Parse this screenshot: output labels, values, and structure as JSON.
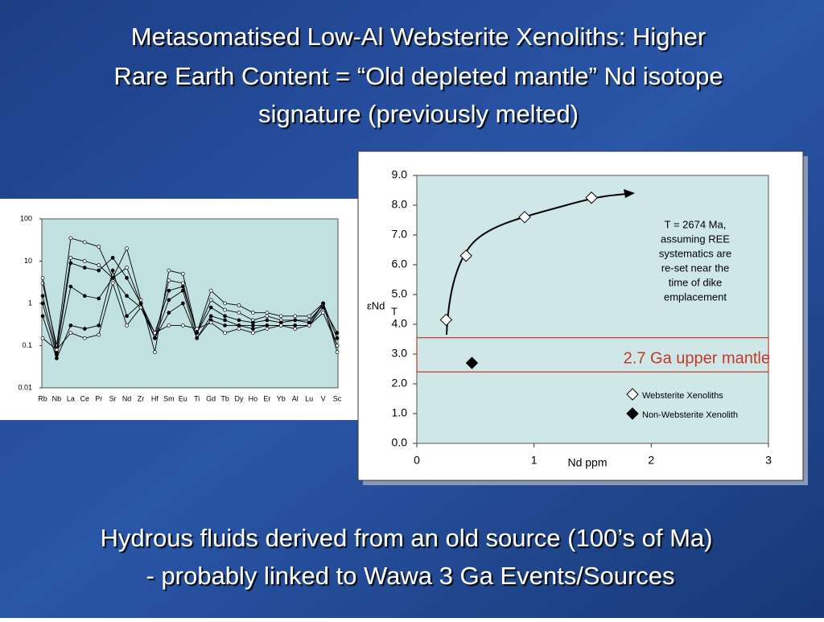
{
  "slide": {
    "title_lines": [
      "Metasomatised Low-Al Websterite Xenoliths: Higher",
      "Rare Earth Content = “Old depleted mantle” Nd isotope",
      "signature (previously melted)"
    ],
    "footer_lines": [
      "Hydrous fluids derived from an old source (100’s of Ma)",
      "- probably linked to Wawa 3 Ga Events/Sources"
    ]
  },
  "chart_data": [
    {
      "type": "line",
      "log_y": true,
      "categories": [
        "Rb",
        "Nb",
        "La",
        "Ce",
        "Pr",
        "Sr",
        "Nd",
        "Zr",
        "Hf",
        "Sm",
        "Eu",
        "Ti",
        "Gd",
        "Tb",
        "Dy",
        "Ho",
        "Er",
        "Yb",
        "Al",
        "Lu",
        "V",
        "Sc"
      ],
      "ylim": [
        0.01,
        100
      ],
      "yticks": [
        0.01,
        0.1,
        1,
        10,
        100
      ],
      "series": [
        {
          "color": "#000000",
          "marker_fill": "#ffffff",
          "values": [
            3,
            0.1,
            35,
            28,
            22,
            4,
            20,
            1.2,
            0.07,
            6,
            5,
            0.2,
            2,
            1,
            0.9,
            0.6,
            0.6,
            0.5,
            0.5,
            0.5,
            1,
            0.07
          ]
        },
        {
          "color": "#000000",
          "marker_fill": "#ffffff",
          "values": [
            4,
            0.08,
            12,
            10,
            8,
            4,
            7,
            1,
            0.15,
            3.5,
            3,
            0.2,
            1.2,
            0.7,
            0.6,
            0.4,
            0.5,
            0.4,
            0.4,
            0.4,
            0.9,
            0.1
          ]
        },
        {
          "color": "#000000",
          "marker_fill": "#000000",
          "values": [
            1.5,
            0.07,
            9,
            7,
            6,
            12,
            4,
            1,
            0.2,
            2,
            2.5,
            0.2,
            0.8,
            0.5,
            0.4,
            0.35,
            0.4,
            0.35,
            0.4,
            0.35,
            1,
            0.15
          ]
        },
        {
          "color": "#000000",
          "marker_fill": "#000000",
          "values": [
            1,
            0.06,
            2.5,
            1.5,
            1.3,
            4,
            1.5,
            0.8,
            0.15,
            1.2,
            2,
            0.15,
            0.5,
            0.4,
            0.3,
            0.3,
            0.3,
            0.3,
            0.3,
            0.3,
            0.8,
            0.2
          ]
        },
        {
          "color": "#000000",
          "marker_fill": "#000000",
          "values": [
            0.5,
            0.05,
            0.3,
            0.25,
            0.3,
            6,
            0.5,
            1,
            0.15,
            0.6,
            1,
            0.15,
            0.4,
            0.3,
            0.3,
            0.25,
            0.3,
            0.3,
            0.3,
            0.3,
            1,
            0.15
          ]
        },
        {
          "color": "#000000",
          "marker_fill": "#ffffff",
          "values": [
            0.15,
            0.08,
            0.2,
            0.15,
            0.18,
            3,
            0.3,
            0.8,
            0.2,
            0.3,
            0.3,
            0.25,
            0.35,
            0.2,
            0.25,
            0.2,
            0.25,
            0.3,
            0.25,
            0.3,
            0.6,
            0.1
          ]
        }
      ]
    },
    {
      "type": "scatter",
      "x_label": "Nd ppm",
      "y_label": "εNd",
      "y_label_subscript": "T",
      "xlim": [
        0,
        3
      ],
      "xticks": [
        0,
        1,
        2,
        3
      ],
      "ylim": [
        0,
        9
      ],
      "yticks": [
        {
          "value": 0,
          "label": "0.0"
        },
        {
          "value": 1,
          "label": "1.0"
        },
        {
          "value": 2,
          "label": "2.0"
        },
        {
          "value": 3,
          "label": "3.0"
        },
        {
          "value": 4,
          "label": "4.0"
        },
        {
          "value": 5,
          "label": "5.0"
        },
        {
          "value": 6,
          "label": "6.0"
        },
        {
          "value": 7,
          "label": "7.0"
        },
        {
          "value": 8,
          "label": "8.0"
        },
        {
          "value": 9,
          "label": "9.0"
        }
      ],
      "series": [
        {
          "name": "Websterite Xenoliths",
          "color": "#ffffff",
          "x": [
            0.25,
            0.42,
            0.92,
            1.49
          ],
          "values": [
            4.15,
            6.3,
            7.6,
            8.25
          ]
        },
        {
          "name": "Non-Websterite Xenolith",
          "color": "#000000",
          "x": [
            0.47
          ],
          "values": [
            2.7
          ]
        }
      ],
      "annotation_lines": [
        "T = 2674 Ma,",
        "assuming REE",
        "systematics are",
        "re-set near the",
        "time of dike",
        "emplacement"
      ],
      "band": {
        "label": "2.7 Ga upper mantle",
        "range": [
          2.4,
          3.55
        ],
        "color": "#c0392b"
      }
    }
  ]
}
